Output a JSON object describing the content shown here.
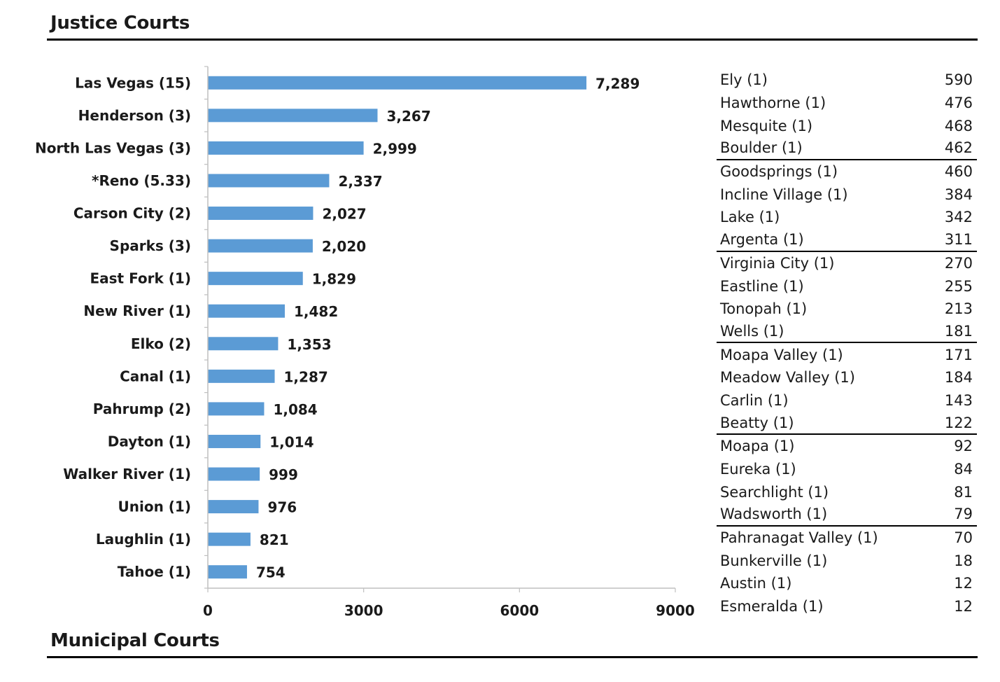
{
  "sections": {
    "justice_title": "Justice Courts",
    "municipal_title": "Municipal Courts"
  },
  "colors": {
    "bar": "#5b9bd5",
    "axis": "#bfbfbf",
    "rule": "#000000"
  },
  "chart_data": {
    "type": "bar",
    "orientation": "horizontal",
    "title": "Justice Courts",
    "categories": [
      "Las Vegas (15)",
      "Henderson (3)",
      "North Las Vegas (3)",
      "*Reno (5.33)",
      "Carson City (2)",
      "Sparks (3)",
      "East Fork (1)",
      "New River (1)",
      "Elko (2)",
      "Canal (1)",
      "Pahrump (2)",
      "Dayton (1)",
      "Walker River (1)",
      "Union (1)",
      "Laughlin (1)",
      "Tahoe (1)"
    ],
    "values": [
      7289,
      3267,
      2999,
      2337,
      2027,
      2020,
      1829,
      1482,
      1353,
      1287,
      1084,
      1014,
      999,
      976,
      821,
      754
    ],
    "value_labels": [
      "7,289",
      "3,267",
      "2,999",
      "2,337",
      "2,027",
      "2,020",
      "1,829",
      "1,482",
      "1,353",
      "1,287",
      "1,084",
      "1,014",
      "999",
      "976",
      "821",
      "754"
    ],
    "xlim": [
      0,
      9000
    ],
    "xticks": [
      0,
      3000,
      6000,
      9000
    ],
    "grid": false
  },
  "table": {
    "rows": [
      {
        "name": "Ely (1)",
        "value": "590"
      },
      {
        "name": "Hawthorne (1)",
        "value": "476"
      },
      {
        "name": "Mesquite (1)",
        "value": "468"
      },
      {
        "name": "Boulder (1)",
        "value": "462",
        "group_end": true
      },
      {
        "name": "Goodsprings (1)",
        "value": "460"
      },
      {
        "name": "Incline Village (1)",
        "value": "384"
      },
      {
        "name": "Lake (1)",
        "value": "342"
      },
      {
        "name": "Argenta (1)",
        "value": "311",
        "group_end": true
      },
      {
        "name": "Virginia City (1)",
        "value": "270"
      },
      {
        "name": "Eastline (1)",
        "value": "255"
      },
      {
        "name": "Tonopah (1)",
        "value": "213"
      },
      {
        "name": "Wells (1)",
        "value": "181",
        "group_end": true
      },
      {
        "name": "Moapa Valley (1)",
        "value": "171"
      },
      {
        "name": "Meadow Valley (1)",
        "value": "184"
      },
      {
        "name": "Carlin (1)",
        "value": "143"
      },
      {
        "name": "Beatty (1)",
        "value": "122",
        "group_end": true
      },
      {
        "name": "Moapa (1)",
        "value": "92"
      },
      {
        "name": "Eureka (1)",
        "value": "84"
      },
      {
        "name": "Searchlight (1)",
        "value": "81"
      },
      {
        "name": "Wadsworth (1)",
        "value": "79",
        "group_end": true
      },
      {
        "name": "Pahranagat Valley (1)",
        "value": "70"
      },
      {
        "name": "Bunkerville (1)",
        "value": "18"
      },
      {
        "name": "Austin (1)",
        "value": "12"
      },
      {
        "name": "Esmeralda (1)",
        "value": "12"
      }
    ]
  }
}
